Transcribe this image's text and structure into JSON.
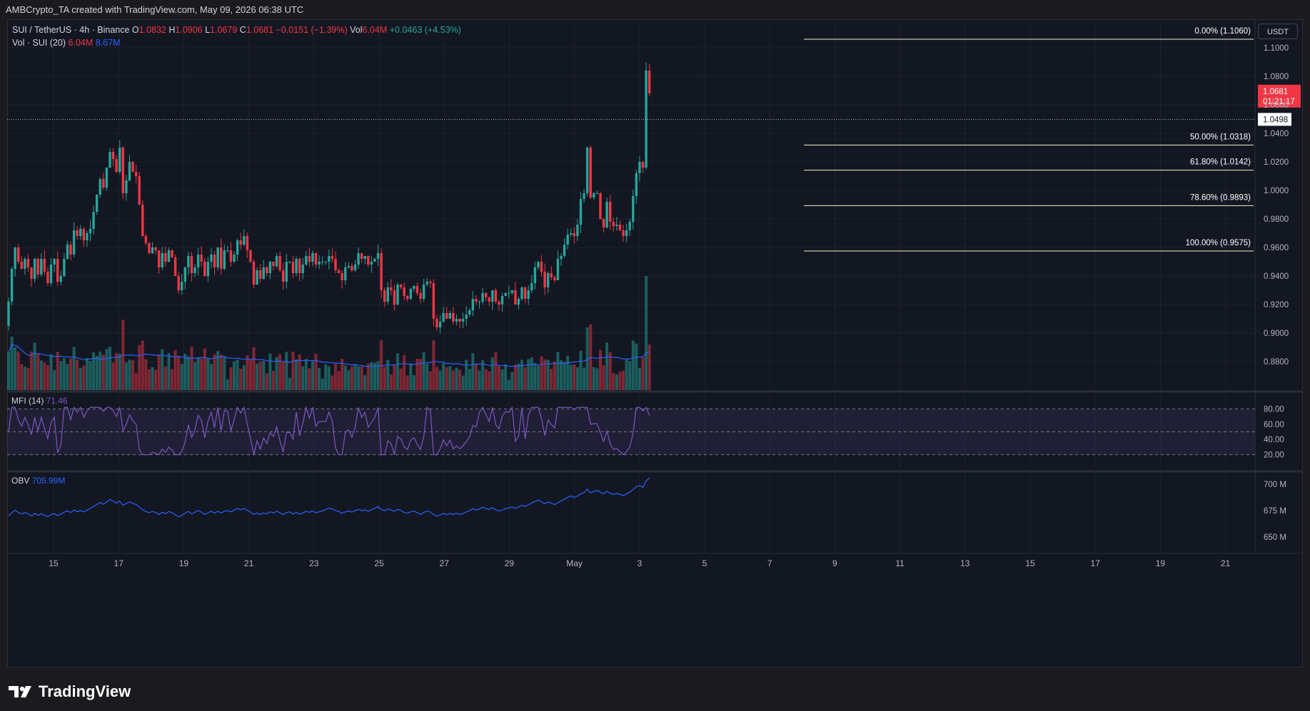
{
  "header": {
    "title": "AMBCrypto_TA created with TradingView.com, May 09, 2026 06:38 UTC"
  },
  "legend": {
    "symbol": "SUI / TetherUS · 4h · Binance",
    "o_label": "O",
    "o_value": "1.0832",
    "h_label": "H",
    "h_value": "1.0906",
    "l_label": "L",
    "l_value": "1.0679",
    "c_label": "C",
    "c_value": "1.0681",
    "change": "−0.0151 (−1.39%)",
    "vol_label": "Vol",
    "vol_value": "6.04M",
    "vol_change": "+0.0463 (+4.53%)",
    "vol_study": "Vol · SUI (20)",
    "vol_study_v1": "6.04M",
    "vol_study_v2": "8.67M",
    "mfi_label": "MFI (14)",
    "mfi_value": "71.46",
    "obv_label": "OBV",
    "obv_value": "705.99M"
  },
  "currency_chip": "USDT",
  "footer": {
    "brand": "TradingView"
  },
  "colors": {
    "up": "#26a69a",
    "down": "#f23645",
    "fib": "#f5f3c8",
    "mfi": "#7e57c2",
    "obv": "#2962ff",
    "vol_ma": "#2962ff"
  },
  "chart_data": {
    "type": "candlestick",
    "price_axis": {
      "min": 0.86,
      "max": 1.12,
      "ticks": [
        "1.1000",
        "1.0800",
        "1.0600",
        "1.0400",
        "1.0200",
        "1.0000",
        "0.9800",
        "0.9600",
        "0.9400",
        "0.9200",
        "0.9000",
        "0.8800",
        "0.8600"
      ]
    },
    "x_axis": {
      "ticks": [
        "15",
        "17",
        "19",
        "21",
        "23",
        "25",
        "27",
        "29",
        "May",
        "3",
        "5",
        "7",
        "9",
        "11",
        "13",
        "15",
        "17",
        "19",
        "21"
      ]
    },
    "price_labels": {
      "last": "1.0681",
      "countdown": "01:21:17",
      "marker": "1.0498"
    },
    "marker_line_value": 1.0498,
    "fib_levels": [
      {
        "label": "0.00% (1.1060)",
        "value": 1.106
      },
      {
        "label": "50.00% (1.0318)",
        "value": 1.0318
      },
      {
        "label": "61.80% (1.0142)",
        "value": 1.0142
      },
      {
        "label": "78.60% (0.9893)",
        "value": 0.9893
      },
      {
        "label": "100.00% (0.9575)",
        "value": 0.9575
      }
    ],
    "closes": [
      0.922,
      0.945,
      0.96,
      0.95,
      0.945,
      0.952,
      0.946,
      0.938,
      0.952,
      0.941,
      0.952,
      0.943,
      0.935,
      0.948,
      0.952,
      0.936,
      0.94,
      0.952,
      0.962,
      0.955,
      0.972,
      0.968,
      0.973,
      0.965,
      0.97,
      0.973,
      0.985,
      0.997,
      1.008,
      1.002,
      1.016,
      1.027,
      1.022,
      1.013,
      1.03,
      0.998,
      1.007,
      1.02,
      1.013,
      1.01,
      0.99,
      0.968,
      0.963,
      0.956,
      0.96,
      0.958,
      0.946,
      0.956,
      0.95,
      0.958,
      0.953,
      0.94,
      0.93,
      0.936,
      0.946,
      0.954,
      0.942,
      0.946,
      0.955,
      0.95,
      0.94,
      0.95,
      0.955,
      0.946,
      0.96,
      0.945,
      0.958,
      0.958,
      0.95,
      0.955,
      0.965,
      0.962,
      0.968,
      0.958,
      0.95,
      0.934,
      0.944,
      0.938,
      0.946,
      0.942,
      0.95,
      0.947,
      0.954,
      0.944,
      0.936,
      0.95,
      0.95,
      0.942,
      0.952,
      0.942,
      0.948,
      0.954,
      0.95,
      0.956,
      0.948,
      0.95,
      0.95,
      0.95,
      0.954,
      0.952,
      0.944,
      0.942,
      0.937,
      0.946,
      0.947,
      0.944,
      0.948,
      0.956,
      0.952,
      0.954,
      0.948,
      0.95,
      0.952,
      0.956,
      0.93,
      0.922,
      0.932,
      0.93,
      0.92,
      0.934,
      0.932,
      0.926,
      0.924,
      0.931,
      0.933,
      0.928,
      0.924,
      0.934,
      0.936,
      0.935,
      0.91,
      0.904,
      0.908,
      0.914,
      0.91,
      0.914,
      0.908,
      0.91,
      0.908,
      0.91,
      0.913,
      0.916,
      0.924,
      0.922,
      0.922,
      0.928,
      0.925,
      0.922,
      0.93,
      0.922,
      0.92,
      0.926,
      0.928,
      0.928,
      0.93,
      0.92,
      0.924,
      0.932,
      0.924,
      0.93,
      0.935,
      0.946,
      0.95,
      0.943,
      0.932,
      0.942,
      0.939,
      0.937,
      0.952,
      0.954,
      0.962,
      0.969,
      0.97,
      0.968,
      0.976,
      0.994,
      0.998,
      1.03,
      0.995,
      0.998,
      0.998,
      0.98,
      0.974,
      0.992,
      0.978,
      0.975,
      0.976,
      0.972,
      0.968,
      0.972,
      0.978,
      0.996,
      1.012,
      1.02,
      1.016,
      1.084,
      1.068
    ],
    "mfi": {
      "range": [
        0,
        100
      ],
      "ticks": [
        "80.00",
        "60.00",
        "40.00",
        "20.00"
      ],
      "upper": 80,
      "mid": 50,
      "lower": 20,
      "last": 71.46
    },
    "obv": {
      "ticks": [
        "700 M",
        "675 M",
        "650 M"
      ],
      "range": [
        637,
        710
      ],
      "last": 705.99
    }
  }
}
